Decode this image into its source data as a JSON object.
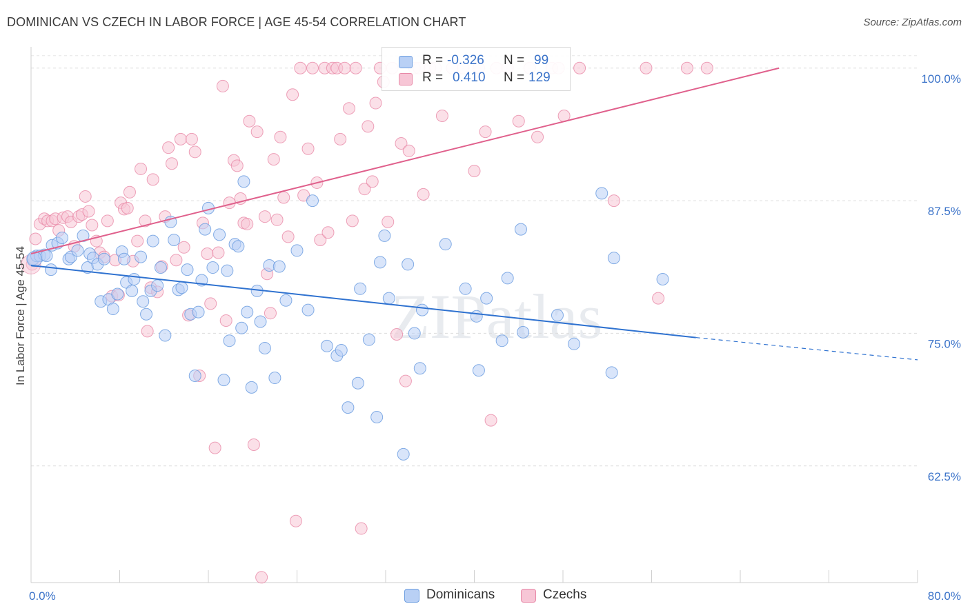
{
  "title": "DOMINICAN VS CZECH IN LABOR FORCE | AGE 45-54 CORRELATION CHART",
  "source": "Source: ZipAtlas.com",
  "colors": {
    "blue": "#6f9fe0",
    "blue_fill": "#b9d0f5",
    "blue_line": "#2f72d0",
    "pink": "#e889a8",
    "pink_fill": "#f7c6d6",
    "pink_line": "#e0608c",
    "accent_text": "#3b73c9"
  },
  "legend": {
    "r_label": "R =",
    "n_label": "N =",
    "rows": [
      {
        "series": "Dominicans",
        "r": "-0.326",
        "n": "99"
      },
      {
        "series": "Czechs",
        "r": "0.410",
        "n": "129"
      }
    ]
  },
  "bottom_legend": [
    "Dominicans",
    "Czechs"
  ],
  "chart_data": {
    "type": "scatter",
    "title": "DOMINICAN VS CZECH IN LABOR FORCE | AGE 45-54 CORRELATION CHART",
    "xlabel": "",
    "ylabel": "In Labor Force | Age 45-54",
    "xlim": [
      0,
      80
    ],
    "ylim": [
      51.5,
      102
    ],
    "x_tick_labels": [
      "0.0%",
      "80.0%"
    ],
    "y_ticks": [
      62.5,
      75.0,
      87.5,
      100.0
    ],
    "y_tick_labels": [
      "62.5%",
      "75.0%",
      "87.5%",
      "100.0%"
    ],
    "grid": true,
    "legend_position": "top-center",
    "watermark": "ZIPatlas",
    "series": [
      {
        "name": "Dominicans",
        "r": -0.326,
        "n": 99,
        "trend": {
          "x": [
            0,
            60,
            80
          ],
          "y": [
            81.4,
            74.6,
            72.5
          ],
          "solid_until": 60
        },
        "points": [
          [
            0.2,
            82.0
          ],
          [
            0.5,
            82.3
          ],
          [
            0.8,
            82.3
          ],
          [
            1.2,
            82.4
          ],
          [
            1.4,
            82.3
          ],
          [
            1.8,
            81.0
          ],
          [
            1.9,
            83.3
          ],
          [
            2.4,
            83.5
          ],
          [
            2.8,
            84.0
          ],
          [
            3.4,
            82.0
          ],
          [
            3.6,
            82.2
          ],
          [
            4.2,
            82.8
          ],
          [
            4.7,
            84.2
          ],
          [
            5.1,
            81.2
          ],
          [
            5.3,
            82.5
          ],
          [
            5.6,
            82.1
          ],
          [
            6.0,
            81.5
          ],
          [
            6.3,
            78.0
          ],
          [
            6.6,
            82.0
          ],
          [
            7.0,
            78.2
          ],
          [
            7.4,
            77.3
          ],
          [
            7.8,
            78.7
          ],
          [
            8.2,
            82.7
          ],
          [
            8.4,
            82.0
          ],
          [
            8.6,
            79.8
          ],
          [
            9.1,
            79.0
          ],
          [
            9.3,
            80.1
          ],
          [
            9.9,
            82.2
          ],
          [
            10.1,
            78.0
          ],
          [
            10.4,
            76.8
          ],
          [
            10.8,
            79.0
          ],
          [
            11.0,
            83.7
          ],
          [
            11.4,
            79.5
          ],
          [
            11.7,
            81.2
          ],
          [
            12.1,
            74.8
          ],
          [
            12.6,
            85.5
          ],
          [
            12.9,
            83.8
          ],
          [
            13.3,
            79.1
          ],
          [
            13.6,
            79.3
          ],
          [
            14.1,
            81.0
          ],
          [
            14.4,
            76.8
          ],
          [
            14.8,
            71.0
          ],
          [
            15.1,
            77.0
          ],
          [
            15.4,
            80.0
          ],
          [
            15.7,
            84.8
          ],
          [
            16.0,
            86.8
          ],
          [
            16.4,
            81.2
          ],
          [
            17.0,
            84.3
          ],
          [
            17.4,
            70.6
          ],
          [
            17.7,
            80.9
          ],
          [
            17.9,
            74.3
          ],
          [
            18.4,
            83.4
          ],
          [
            18.7,
            83.2
          ],
          [
            19.0,
            75.5
          ],
          [
            19.2,
            89.3
          ],
          [
            19.5,
            77.0
          ],
          [
            19.9,
            69.9
          ],
          [
            20.4,
            79.0
          ],
          [
            20.7,
            76.1
          ],
          [
            21.1,
            73.6
          ],
          [
            21.5,
            81.4
          ],
          [
            22.0,
            70.8
          ],
          [
            22.4,
            81.3
          ],
          [
            23.0,
            78.1
          ],
          [
            24.0,
            82.8
          ],
          [
            25.0,
            77.2
          ],
          [
            25.4,
            87.5
          ],
          [
            26.7,
            73.8
          ],
          [
            27.6,
            72.9
          ],
          [
            28.0,
            73.4
          ],
          [
            28.6,
            68.0
          ],
          [
            29.5,
            70.3
          ],
          [
            29.7,
            79.2
          ],
          [
            30.5,
            74.4
          ],
          [
            31.2,
            67.1
          ],
          [
            31.5,
            81.7
          ],
          [
            31.9,
            84.2
          ],
          [
            32.3,
            78.3
          ],
          [
            33.6,
            63.6
          ],
          [
            34.0,
            81.5
          ],
          [
            34.6,
            75.0
          ],
          [
            35.1,
            71.7
          ],
          [
            35.3,
            77.2
          ],
          [
            37.4,
            83.4
          ],
          [
            39.2,
            79.2
          ],
          [
            40.2,
            76.6
          ],
          [
            40.4,
            71.5
          ],
          [
            41.1,
            78.3
          ],
          [
            42.5,
            74.3
          ],
          [
            43.0,
            80.2
          ],
          [
            44.2,
            84.8
          ],
          [
            44.4,
            75.1
          ],
          [
            47.5,
            76.7
          ],
          [
            49.0,
            74.0
          ],
          [
            51.5,
            88.2
          ],
          [
            52.4,
            71.3
          ],
          [
            52.6,
            82.1
          ],
          [
            57.0,
            80.1
          ]
        ]
      },
      {
        "name": "Czechs",
        "r": 0.41,
        "n": 129,
        "trend": {
          "x": [
            0,
            67.5
          ],
          "y": [
            82.5,
            100.0
          ]
        },
        "points": [
          [
            0.1,
            81.5
          ],
          [
            0.4,
            83.9
          ],
          [
            0.8,
            85.3
          ],
          [
            1.2,
            85.8
          ],
          [
            1.5,
            85.6
          ],
          [
            1.9,
            85.6
          ],
          [
            2.2,
            85.8
          ],
          [
            2.5,
            84.7
          ],
          [
            2.9,
            85.9
          ],
          [
            3.3,
            86.0
          ],
          [
            3.6,
            85.5
          ],
          [
            3.9,
            83.2
          ],
          [
            4.3,
            86.0
          ],
          [
            4.6,
            86.2
          ],
          [
            4.9,
            87.9
          ],
          [
            5.2,
            86.5
          ],
          [
            5.5,
            85.2
          ],
          [
            5.9,
            83.7
          ],
          [
            6.2,
            82.6
          ],
          [
            6.6,
            82.2
          ],
          [
            6.9,
            85.6
          ],
          [
            7.3,
            78.5
          ],
          [
            7.6,
            81.9
          ],
          [
            7.9,
            78.6
          ],
          [
            8.1,
            87.3
          ],
          [
            8.4,
            86.7
          ],
          [
            8.7,
            86.8
          ],
          [
            8.9,
            88.3
          ],
          [
            9.2,
            81.8
          ],
          [
            9.6,
            83.7
          ],
          [
            9.9,
            90.5
          ],
          [
            10.3,
            85.6
          ],
          [
            10.5,
            75.2
          ],
          [
            10.8,
            79.3
          ],
          [
            11.0,
            89.5
          ],
          [
            11.4,
            78.9
          ],
          [
            11.8,
            81.3
          ],
          [
            12.1,
            86.0
          ],
          [
            12.4,
            92.5
          ],
          [
            12.7,
            91.0
          ],
          [
            13.1,
            81.9
          ],
          [
            13.5,
            93.3
          ],
          [
            13.8,
            83.1
          ],
          [
            14.2,
            76.7
          ],
          [
            14.5,
            93.3
          ],
          [
            14.8,
            92.1
          ],
          [
            15.2,
            71.0
          ],
          [
            15.5,
            85.4
          ],
          [
            15.9,
            82.5
          ],
          [
            16.2,
            77.8
          ],
          [
            16.6,
            64.2
          ],
          [
            16.9,
            82.6
          ],
          [
            17.3,
            98.3
          ],
          [
            17.6,
            76.2
          ],
          [
            17.9,
            87.3
          ],
          [
            18.3,
            91.3
          ],
          [
            18.6,
            90.8
          ],
          [
            18.9,
            87.7
          ],
          [
            19.2,
            85.4
          ],
          [
            19.5,
            85.3
          ],
          [
            19.7,
            95.0
          ],
          [
            20.1,
            64.5
          ],
          [
            20.4,
            94.0
          ],
          [
            20.8,
            52.0
          ],
          [
            21.1,
            86.0
          ],
          [
            21.3,
            80.6
          ],
          [
            21.6,
            76.9
          ],
          [
            21.9,
            91.4
          ],
          [
            22.2,
            85.7
          ],
          [
            22.5,
            93.5
          ],
          [
            22.8,
            87.8
          ],
          [
            23.2,
            84.1
          ],
          [
            23.6,
            97.5
          ],
          [
            23.9,
            57.3
          ],
          [
            24.3,
            100.0
          ],
          [
            24.6,
            88.0
          ],
          [
            25.0,
            92.4
          ],
          [
            25.4,
            100.0
          ],
          [
            25.8,
            89.2
          ],
          [
            26.1,
            83.8
          ],
          [
            26.5,
            100.0
          ],
          [
            26.8,
            84.5
          ],
          [
            27.2,
            100.0
          ],
          [
            27.6,
            100.0
          ],
          [
            27.9,
            93.3
          ],
          [
            28.3,
            100.0
          ],
          [
            28.7,
            96.2
          ],
          [
            29.0,
            85.6
          ],
          [
            29.3,
            100.0
          ],
          [
            29.8,
            56.6
          ],
          [
            30.1,
            88.6
          ],
          [
            30.4,
            94.5
          ],
          [
            30.8,
            89.3
          ],
          [
            31.1,
            96.7
          ],
          [
            31.5,
            100.0
          ],
          [
            31.8,
            98.7
          ],
          [
            32.2,
            85.5
          ],
          [
            32.6,
            100.0
          ],
          [
            33.0,
            74.9
          ],
          [
            33.4,
            92.9
          ],
          [
            33.8,
            70.5
          ],
          [
            34.1,
            92.2
          ],
          [
            34.6,
            100.0
          ],
          [
            35.0,
            100.0
          ],
          [
            35.4,
            88.1
          ],
          [
            36.0,
            100.0
          ],
          [
            36.5,
            100.0
          ],
          [
            37.1,
            95.5
          ],
          [
            38.0,
            100.0
          ],
          [
            39.0,
            100.0
          ],
          [
            40.0,
            90.3
          ],
          [
            40.4,
            100.0
          ],
          [
            41.0,
            94.0
          ],
          [
            41.5,
            66.8
          ],
          [
            42.0,
            100.0
          ],
          [
            43.0,
            100.0
          ],
          [
            44.0,
            95.0
          ],
          [
            45.0,
            100.0
          ],
          [
            45.7,
            93.5
          ],
          [
            47.0,
            100.0
          ],
          [
            47.6,
            100.0
          ],
          [
            48.1,
            95.5
          ],
          [
            49.5,
            100.0
          ],
          [
            52.6,
            87.5
          ],
          [
            55.5,
            100.0
          ],
          [
            56.6,
            78.3
          ],
          [
            59.2,
            100.0
          ],
          [
            61.0,
            100.0
          ]
        ]
      }
    ]
  }
}
